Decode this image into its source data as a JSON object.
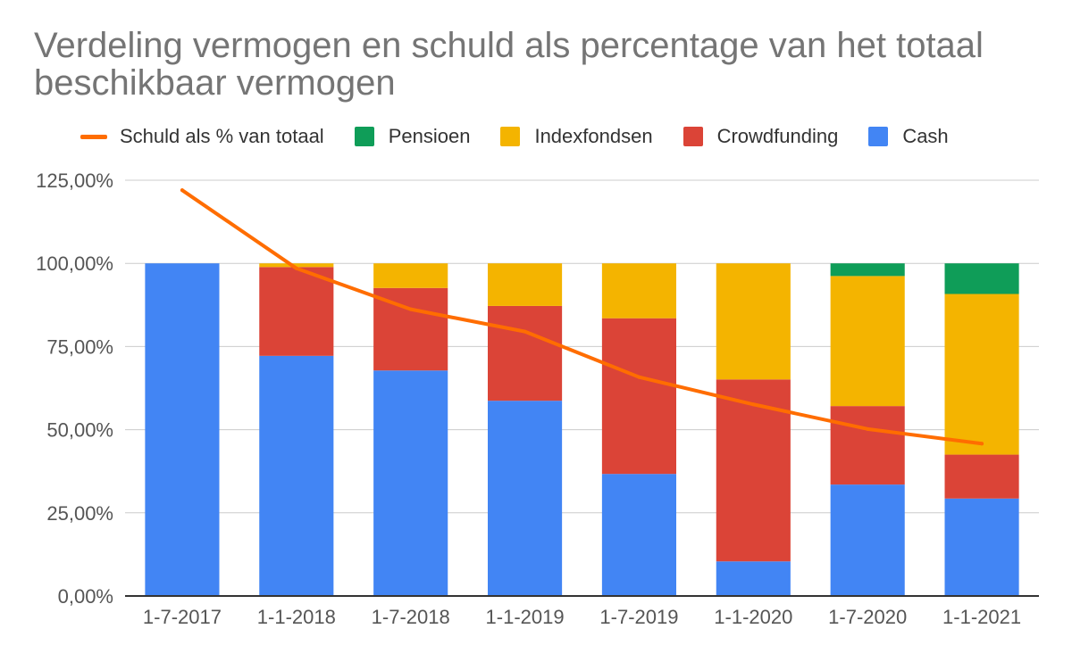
{
  "chart_data": {
    "type": "bar",
    "stacked": true,
    "title": "Verdeling vermogen en schuld als percentage van het totaal beschikbaar vermogen",
    "categories": [
      "1-7-2017",
      "1-1-2018",
      "1-7-2018",
      "1-1-2019",
      "1-7-2019",
      "1-1-2020",
      "1-7-2020",
      "1-1-2021"
    ],
    "ylim": [
      0,
      125
    ],
    "yticks": [
      0,
      25,
      50,
      75,
      100,
      125
    ],
    "ytick_labels": [
      "0,00%",
      "25,00%",
      "50,00%",
      "75,00%",
      "100,00%",
      "125,00%"
    ],
    "grid": true,
    "legend_position": "top",
    "legend": [
      "Schuld als % van totaal",
      "Pensioen",
      "Indexfondsen",
      "Crowdfunding",
      "Cash"
    ],
    "series": [
      {
        "name": "Cash",
        "type": "bar",
        "color": "#4285f4",
        "values": [
          100,
          72.2,
          67.8,
          58.7,
          36.7,
          10.4,
          33.5,
          29.3
        ]
      },
      {
        "name": "Crowdfunding",
        "type": "bar",
        "color": "#db4437",
        "values": [
          0,
          26.7,
          24.8,
          28.5,
          46.8,
          54.7,
          23.6,
          13.2
        ]
      },
      {
        "name": "Indexfondsen",
        "type": "bar",
        "color": "#f4b400",
        "values": [
          0,
          1.1,
          7.4,
          12.8,
          16.5,
          34.9,
          39.1,
          48.3
        ]
      },
      {
        "name": "Pensioen",
        "type": "bar",
        "color": "#0f9d58",
        "values": [
          0,
          0,
          0,
          0,
          0,
          0,
          3.8,
          9.2
        ]
      },
      {
        "name": "Schuld als % van totaal",
        "type": "line",
        "color": "#ff6d00",
        "values": [
          122,
          98.5,
          86.2,
          79.5,
          65.8,
          57.6,
          50.2,
          45.8
        ]
      }
    ]
  }
}
